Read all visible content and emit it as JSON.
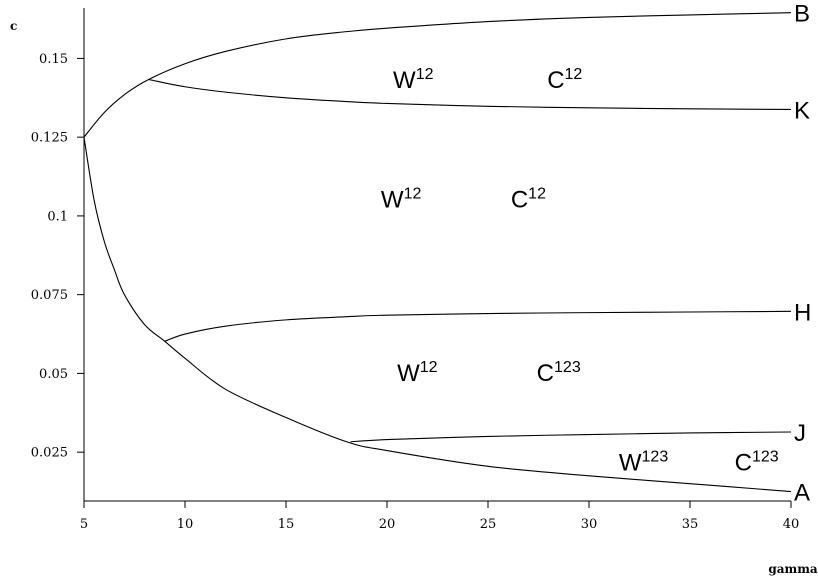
{
  "chart_data": {
    "type": "line",
    "xlabel": "gamma",
    "ylabel": "c",
    "xlim": [
      5,
      40
    ],
    "ylim": [
      0.0095,
      0.166
    ],
    "x_ticks": [
      5,
      10,
      15,
      20,
      25,
      30,
      35,
      40
    ],
    "x_tick_labels": [
      "5",
      "10",
      "15",
      "20",
      "25",
      "30",
      "35",
      "40"
    ],
    "y_ticks": [
      0.025,
      0.05,
      0.075,
      0.1,
      0.125,
      0.15
    ],
    "y_tick_labels": [
      "0.025",
      "0.05",
      "0.075",
      "0.1",
      "0.125",
      "0.15"
    ],
    "grid": false,
    "series": [
      {
        "name": "B",
        "x": [
          5,
          6,
          7,
          8.2,
          10,
          12,
          15,
          18,
          20,
          25,
          30,
          35,
          40
        ],
        "y": [
          0.125,
          0.1328,
          0.1385,
          0.1433,
          0.1483,
          0.1522,
          0.1562,
          0.1585,
          0.1596,
          0.1617,
          0.163,
          0.1638,
          0.1645
        ]
      },
      {
        "name": "K",
        "x": [
          8.2,
          10,
          12,
          15,
          18,
          20,
          25,
          30,
          35,
          40
        ],
        "y": [
          0.1433,
          0.141,
          0.1393,
          0.1375,
          0.1363,
          0.1357,
          0.1348,
          0.1343,
          0.134,
          0.1338
        ]
      },
      {
        "name": "H",
        "x": [
          9,
          10,
          12,
          15,
          18,
          20,
          25,
          30,
          35,
          40
        ],
        "y": [
          0.0602,
          0.0625,
          0.065,
          0.067,
          0.068,
          0.0685,
          0.069,
          0.0693,
          0.0695,
          0.0697
        ]
      },
      {
        "name": "J",
        "x": [
          18.2,
          20,
          25,
          30,
          35,
          40
        ],
        "y": [
          0.0283,
          0.029,
          0.03,
          0.0306,
          0.0311,
          0.0314
        ]
      },
      {
        "name": "A",
        "x": [
          5,
          5.5,
          6,
          6.5,
          7,
          8,
          9,
          10,
          12,
          15,
          18,
          20,
          25,
          30,
          35,
          40
        ],
        "y": [
          0.125,
          0.105,
          0.092,
          0.083,
          0.075,
          0.0655,
          0.0602,
          0.0548,
          0.045,
          0.036,
          0.0283,
          0.0255,
          0.0205,
          0.0175,
          0.015,
          0.0125
        ]
      }
    ],
    "curve_labels": [
      {
        "text": "B",
        "series": "B"
      },
      {
        "text": "K",
        "series": "K"
      },
      {
        "text": "H",
        "series": "H"
      },
      {
        "text": "J",
        "series": "J"
      },
      {
        "text": "A",
        "series": "A"
      }
    ],
    "region_labels": [
      {
        "base": "W",
        "sup": "12",
        "x": 21.3,
        "y": 0.1435
      },
      {
        "base": "C",
        "sup": "12",
        "x": 28.8,
        "y": 0.1435
      },
      {
        "base": "W",
        "sup": "12",
        "x": 20.7,
        "y": 0.1055
      },
      {
        "base": "C",
        "sup": "12",
        "x": 27.0,
        "y": 0.1055
      },
      {
        "base": "W",
        "sup": "12",
        "x": 21.5,
        "y": 0.0505
      },
      {
        "base": "C",
        "sup": "123",
        "x": 28.5,
        "y": 0.0505
      },
      {
        "base": "W",
        "sup": "123",
        "x": 32.7,
        "y": 0.022
      },
      {
        "base": "C",
        "sup": "123",
        "x": 38.3,
        "y": 0.022
      }
    ]
  }
}
